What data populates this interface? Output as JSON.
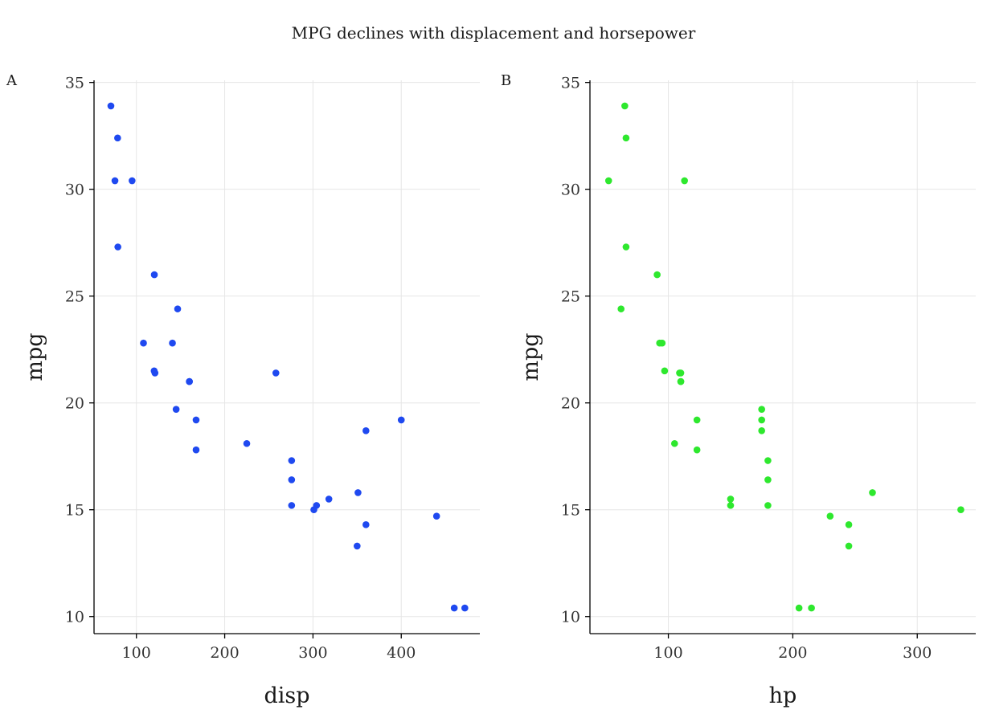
{
  "title": "MPG declines with displacement and horsepower",
  "colors": {
    "panel_a_points": "#1f49f0",
    "panel_b_points": "#2ee82e",
    "grid": "#e6e6e6",
    "axis": "#000000"
  },
  "chart_data": [
    {
      "type": "scatter",
      "tag": "A",
      "xlabel": "disp",
      "ylabel": "mpg",
      "xlim": [
        52,
        489
      ],
      "ylim": [
        9.2,
        35.1
      ],
      "xticks": [
        100,
        200,
        300,
        400
      ],
      "yticks": [
        10,
        15,
        20,
        25,
        30,
        35
      ],
      "grid": true,
      "points": [
        {
          "x": 160,
          "y": 21.0
        },
        {
          "x": 160,
          "y": 21.0
        },
        {
          "x": 108,
          "y": 22.8
        },
        {
          "x": 258,
          "y": 21.4
        },
        {
          "x": 360,
          "y": 18.7
        },
        {
          "x": 225,
          "y": 18.1
        },
        {
          "x": 360,
          "y": 14.3
        },
        {
          "x": 146.7,
          "y": 24.4
        },
        {
          "x": 140.8,
          "y": 22.8
        },
        {
          "x": 167.6,
          "y": 19.2
        },
        {
          "x": 167.6,
          "y": 17.8
        },
        {
          "x": 275.8,
          "y": 16.4
        },
        {
          "x": 275.8,
          "y": 17.3
        },
        {
          "x": 275.8,
          "y": 15.2
        },
        {
          "x": 472,
          "y": 10.4
        },
        {
          "x": 460,
          "y": 10.4
        },
        {
          "x": 440,
          "y": 14.7
        },
        {
          "x": 78.7,
          "y": 32.4
        },
        {
          "x": 75.7,
          "y": 30.4
        },
        {
          "x": 71.1,
          "y": 33.9
        },
        {
          "x": 120.1,
          "y": 21.5
        },
        {
          "x": 318,
          "y": 15.5
        },
        {
          "x": 304,
          "y": 15.2
        },
        {
          "x": 350,
          "y": 13.3
        },
        {
          "x": 400,
          "y": 19.2
        },
        {
          "x": 79,
          "y": 27.3
        },
        {
          "x": 120.3,
          "y": 26.0
        },
        {
          "x": 95.1,
          "y": 30.4
        },
        {
          "x": 351,
          "y": 15.8
        },
        {
          "x": 145,
          "y": 19.7
        },
        {
          "x": 301,
          "y": 15.0
        },
        {
          "x": 121,
          "y": 21.4
        }
      ]
    },
    {
      "type": "scatter",
      "tag": "B",
      "xlabel": "hp",
      "ylabel": "mpg",
      "xlim": [
        37,
        347
      ],
      "ylim": [
        9.2,
        35.1
      ],
      "xticks": [
        100,
        200,
        300
      ],
      "yticks": [
        10,
        15,
        20,
        25,
        30,
        35
      ],
      "grid": true,
      "points": [
        {
          "x": 110,
          "y": 21.0
        },
        {
          "x": 110,
          "y": 21.0
        },
        {
          "x": 93,
          "y": 22.8
        },
        {
          "x": 110,
          "y": 21.4
        },
        {
          "x": 175,
          "y": 18.7
        },
        {
          "x": 105,
          "y": 18.1
        },
        {
          "x": 245,
          "y": 14.3
        },
        {
          "x": 62,
          "y": 24.4
        },
        {
          "x": 95,
          "y": 22.8
        },
        {
          "x": 123,
          "y": 19.2
        },
        {
          "x": 123,
          "y": 17.8
        },
        {
          "x": 180,
          "y": 16.4
        },
        {
          "x": 180,
          "y": 17.3
        },
        {
          "x": 180,
          "y": 15.2
        },
        {
          "x": 205,
          "y": 10.4
        },
        {
          "x": 215,
          "y": 10.4
        },
        {
          "x": 230,
          "y": 14.7
        },
        {
          "x": 66,
          "y": 32.4
        },
        {
          "x": 52,
          "y": 30.4
        },
        {
          "x": 65,
          "y": 33.9
        },
        {
          "x": 97,
          "y": 21.5
        },
        {
          "x": 150,
          "y": 15.5
        },
        {
          "x": 150,
          "y": 15.2
        },
        {
          "x": 245,
          "y": 13.3
        },
        {
          "x": 175,
          "y": 19.2
        },
        {
          "x": 66,
          "y": 27.3
        },
        {
          "x": 91,
          "y": 26.0
        },
        {
          "x": 113,
          "y": 30.4
        },
        {
          "x": 264,
          "y": 15.8
        },
        {
          "x": 175,
          "y": 19.7
        },
        {
          "x": 335,
          "y": 15.0
        },
        {
          "x": 109,
          "y": 21.4
        }
      ]
    }
  ]
}
